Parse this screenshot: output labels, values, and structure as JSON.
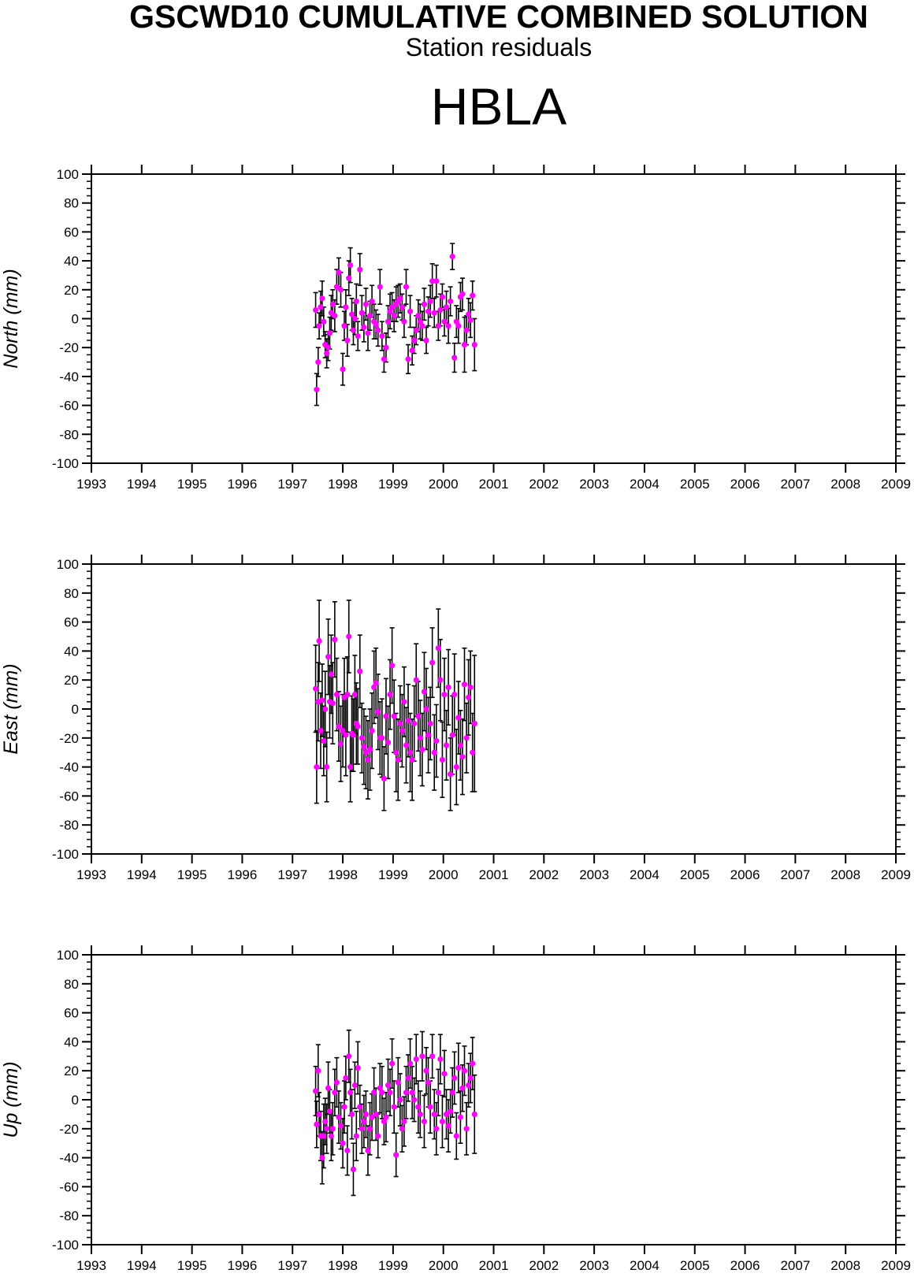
{
  "header": {
    "title": "GSCWD10 CUMULATIVE COMBINED SOLUTION",
    "subtitle": "Station residuals",
    "station": "HBLA"
  },
  "colors": {
    "point": "#ff00ff",
    "errorbar": "#000000",
    "axis": "#000000"
  },
  "chart_data": [
    {
      "type": "scatter",
      "ylabel": "North (mm)",
      "xlim": [
        1993,
        2009
      ],
      "ylim": [
        -100,
        100
      ],
      "xticks": [
        1993,
        1994,
        1995,
        1996,
        1997,
        1998,
        1999,
        2000,
        2001,
        2002,
        2003,
        2004,
        2005,
        2006,
        2007,
        2008,
        2009
      ],
      "yticks": [
        -100,
        -80,
        -60,
        -40,
        -20,
        0,
        20,
        40,
        60,
        80,
        100
      ],
      "ytick_labels": [
        "-100",
        "-80",
        "-60",
        "-40",
        "-20",
        "0",
        "20",
        "40",
        "60",
        "80",
        "100"
      ],
      "xtick_labels": [
        "1993",
        "1994",
        "1995",
        "1996",
        "1997",
        "1998",
        "1999",
        "2000",
        "2001",
        "2002",
        "2003",
        "2004",
        "2005",
        "2006",
        "2007",
        "2008",
        "2009"
      ],
      "series": [
        {
          "x": [
            1997.46,
            1997.48,
            1997.51,
            1997.53,
            1997.56,
            1997.59,
            1997.62,
            1997.65,
            1997.68,
            1997.71,
            1997.74,
            1997.77,
            1997.8,
            1997.84,
            1997.88,
            1997.92,
            1997.96,
            1998.0,
            1998.03,
            1998.06,
            1998.09,
            1998.12,
            1998.15,
            1998.18,
            1998.21,
            1998.24,
            1998.27,
            1998.3,
            1998.34,
            1998.38,
            1998.42,
            1998.46,
            1998.5,
            1998.54,
            1998.58,
            1998.62,
            1998.66,
            1998.7,
            1998.74,
            1998.78,
            1998.82,
            1998.86,
            1998.9,
            1998.94,
            1998.98,
            1999.02,
            1999.06,
            1999.1,
            1999.14,
            1999.18,
            1999.22,
            1999.26,
            1999.3,
            1999.34,
            1999.38,
            1999.42,
            1999.46,
            1999.5,
            1999.54,
            1999.58,
            1999.62,
            1999.66,
            1999.7,
            1999.74,
            1999.78,
            1999.82,
            1999.86,
            1999.9,
            1999.94,
            1999.98,
            2000.02,
            2000.06,
            2000.1,
            2000.14,
            2000.18,
            2000.22,
            2000.26,
            2000.3,
            2000.34,
            2000.38,
            2000.42,
            2000.46,
            2000.5,
            2000.54,
            2000.58,
            2000.62
          ],
          "y": [
            6,
            -49,
            -30,
            -5,
            8,
            14,
            -2,
            -18,
            -24,
            -20,
            -10,
            4,
            10,
            2,
            22,
            32,
            20,
            -35,
            -5,
            8,
            -15,
            28,
            37,
            3,
            -8,
            0,
            12,
            -12,
            34,
            4,
            -6,
            10,
            -10,
            2,
            12,
            -2,
            -4,
            -8,
            22,
            -12,
            -28,
            -20,
            -2,
            5,
            8,
            2,
            10,
            12,
            14,
            8,
            -2,
            22,
            -28,
            5,
            -22,
            -15,
            -8,
            2,
            -2,
            -5,
            10,
            -15,
            5,
            12,
            26,
            4,
            26,
            -5,
            6,
            15,
            -2,
            8,
            -5,
            12,
            43,
            -27,
            -2,
            -5,
            15,
            17,
            -18,
            -8,
            3,
            -1,
            16,
            -18
          ],
          "err": [
            12,
            11,
            10,
            9,
            11,
            12,
            10,
            9,
            10,
            9,
            11,
            12,
            10,
            11,
            12,
            10,
            12,
            11,
            10,
            12,
            11,
            12,
            12,
            11,
            10,
            11,
            12,
            10,
            11,
            12,
            10,
            11,
            12,
            10,
            11,
            12,
            10,
            11,
            12,
            10,
            9,
            10,
            11,
            12,
            10,
            11,
            12,
            11,
            10,
            9,
            11,
            12,
            10,
            11,
            10,
            9,
            10,
            11,
            12,
            10,
            11,
            9,
            10,
            11,
            12,
            10,
            11,
            10,
            11,
            9,
            10,
            11,
            12,
            10,
            9,
            10,
            11,
            12,
            10,
            11,
            19,
            10,
            11,
            12,
            10,
            18
          ]
        }
      ]
    },
    {
      "type": "scatter",
      "ylabel": "East (mm)",
      "xlim": [
        1993,
        2009
      ],
      "ylim": [
        -100,
        100
      ],
      "xticks": [
        1993,
        1994,
        1995,
        1996,
        1997,
        1998,
        1999,
        2000,
        2001,
        2002,
        2003,
        2004,
        2005,
        2006,
        2007,
        2008,
        2009
      ],
      "yticks": [
        -100,
        -80,
        -60,
        -40,
        -20,
        0,
        20,
        40,
        60,
        80,
        100
      ],
      "ytick_labels": [
        "-100",
        "-80",
        "-60",
        "-40",
        "-20",
        "0",
        "20",
        "40",
        "60",
        "80",
        "100"
      ],
      "xtick_labels": [
        "1993",
        "1994",
        "1995",
        "1996",
        "1997",
        "1998",
        "1999",
        "2000",
        "2001",
        "2002",
        "2003",
        "2004",
        "2005",
        "2006",
        "2007",
        "2008",
        "2009"
      ],
      "series": [
        {
          "x": [
            1997.46,
            1997.48,
            1997.51,
            1997.53,
            1997.56,
            1997.59,
            1997.62,
            1997.65,
            1997.68,
            1997.71,
            1997.74,
            1997.77,
            1997.8,
            1997.84,
            1997.88,
            1997.92,
            1997.96,
            1998.0,
            1998.03,
            1998.06,
            1998.09,
            1998.12,
            1998.15,
            1998.18,
            1998.21,
            1998.24,
            1998.27,
            1998.3,
            1998.34,
            1998.38,
            1998.42,
            1998.46,
            1998.5,
            1998.54,
            1998.58,
            1998.62,
            1998.66,
            1998.7,
            1998.74,
            1998.78,
            1998.82,
            1998.86,
            1998.9,
            1998.94,
            1998.98,
            1999.02,
            1999.06,
            1999.1,
            1999.14,
            1999.18,
            1999.22,
            1999.26,
            1999.3,
            1999.34,
            1999.38,
            1999.42,
            1999.46,
            1999.5,
            1999.54,
            1999.58,
            1999.62,
            1999.66,
            1999.7,
            1999.74,
            1999.78,
            1999.82,
            1999.86,
            1999.9,
            1999.94,
            1999.98,
            2000.02,
            2000.06,
            2000.1,
            2000.14,
            2000.18,
            2000.22,
            2000.26,
            2000.3,
            2000.34,
            2000.38,
            2000.42,
            2000.46,
            2000.5,
            2000.54,
            2000.58,
            2000.62
          ],
          "y": [
            14,
            -40,
            5,
            47,
            -15,
            6,
            -22,
            0,
            -40,
            36,
            5,
            24,
            4,
            48,
            10,
            -12,
            -24,
            -15,
            8,
            -18,
            10,
            50,
            -40,
            -17,
            -18,
            10,
            -10,
            -12,
            26,
            -20,
            -26,
            -30,
            -35,
            -28,
            -15,
            15,
            18,
            -2,
            -20,
            -20,
            -48,
            -5,
            -23,
            10,
            30,
            -5,
            -30,
            -35,
            -10,
            -15,
            5,
            -25,
            -8,
            -30,
            -35,
            -10,
            20,
            -5,
            -20,
            -28,
            12,
            0,
            -18,
            -10,
            32,
            -30,
            -22,
            42,
            20,
            -35,
            10,
            -25,
            15,
            -45,
            -18,
            10,
            -40,
            -6,
            -25,
            -33,
            17,
            -20,
            8,
            15,
            -30,
            -10
          ],
          "err": [
            30,
            25,
            27,
            28,
            26,
            25,
            24,
            26,
            24,
            26,
            25,
            27,
            28,
            26,
            25,
            24,
            26,
            25,
            27,
            28,
            26,
            25,
            24,
            26,
            25,
            27,
            28,
            26,
            25,
            24,
            26,
            25,
            27,
            28,
            26,
            25,
            24,
            26,
            25,
            27,
            22,
            26,
            25,
            24,
            26,
            25,
            27,
            28,
            26,
            25,
            24,
            26,
            25,
            27,
            28,
            26,
            25,
            24,
            26,
            25,
            27,
            28,
            26,
            25,
            24,
            26,
            25,
            27,
            28,
            26,
            25,
            24,
            26,
            25,
            27,
            28,
            26,
            25,
            24,
            26,
            25,
            24,
            26,
            25,
            27,
            47
          ]
        }
      ]
    },
    {
      "type": "scatter",
      "ylabel": "Up (mm)",
      "xlim": [
        1993,
        2009
      ],
      "ylim": [
        -100,
        100
      ],
      "xticks": [
        1993,
        1994,
        1995,
        1996,
        1997,
        1998,
        1999,
        2000,
        2001,
        2002,
        2003,
        2004,
        2005,
        2006,
        2007,
        2008,
        2009
      ],
      "yticks": [
        -100,
        -80,
        -60,
        -40,
        -20,
        0,
        20,
        40,
        60,
        80,
        100
      ],
      "ytick_labels": [
        "-100",
        "-80",
        "-60",
        "-40",
        "-20",
        "0",
        "20",
        "40",
        "60",
        "80",
        "100"
      ],
      "xtick_labels": [
        "1993",
        "1994",
        "1995",
        "1996",
        "1997",
        "1998",
        "1999",
        "2000",
        "2001",
        "2002",
        "2003",
        "2004",
        "2005",
        "2006",
        "2007",
        "2008",
        "2009"
      ],
      "series": [
        {
          "x": [
            1997.46,
            1997.48,
            1997.51,
            1997.53,
            1997.56,
            1997.59,
            1997.62,
            1997.65,
            1997.68,
            1997.71,
            1997.74,
            1997.77,
            1997.8,
            1997.84,
            1997.88,
            1997.92,
            1997.96,
            1998.0,
            1998.03,
            1998.06,
            1998.09,
            1998.12,
            1998.15,
            1998.18,
            1998.21,
            1998.24,
            1998.27,
            1998.3,
            1998.34,
            1998.38,
            1998.42,
            1998.46,
            1998.5,
            1998.54,
            1998.58,
            1998.62,
            1998.66,
            1998.7,
            1998.74,
            1998.78,
            1998.82,
            1998.86,
            1998.9,
            1998.94,
            1998.98,
            1999.02,
            1999.06,
            1999.1,
            1999.14,
            1999.18,
            1999.22,
            1999.26,
            1999.3,
            1999.34,
            1999.38,
            1999.42,
            1999.46,
            1999.5,
            1999.54,
            1999.58,
            1999.62,
            1999.66,
            1999.7,
            1999.74,
            1999.78,
            1999.82,
            1999.86,
            1999.9,
            1999.94,
            1999.98,
            2000.02,
            2000.06,
            2000.1,
            2000.14,
            2000.18,
            2000.22,
            2000.26,
            2000.3,
            2000.34,
            2000.38,
            2000.42,
            2000.46,
            2000.5,
            2000.54,
            2000.58,
            2000.62
          ],
          "y": [
            6,
            -17,
            20,
            -10,
            -25,
            -40,
            -25,
            -15,
            -20,
            8,
            -8,
            -25,
            -20,
            5,
            12,
            -12,
            -18,
            -30,
            -5,
            15,
            -35,
            30,
            5,
            -10,
            -48,
            10,
            -25,
            22,
            -5,
            -20,
            -15,
            -10,
            -35,
            -20,
            -12,
            5,
            -10,
            -25,
            8,
            5,
            -15,
            -12,
            10,
            5,
            25,
            -5,
            -38,
            12,
            0,
            -20,
            -15,
            5,
            15,
            25,
            5,
            0,
            28,
            -5,
            -10,
            30,
            -15,
            20,
            12,
            -5,
            30,
            -10,
            -20,
            5,
            28,
            -15,
            18,
            -10,
            -18,
            -8,
            5,
            15,
            -25,
            22,
            -12,
            8,
            20,
            -20,
            10,
            15,
            25,
            -10
          ],
          "err": [
            17,
            16,
            18,
            15,
            17,
            18,
            22,
            16,
            17,
            18,
            15,
            17,
            18,
            16,
            17,
            18,
            16,
            17,
            18,
            15,
            17,
            18,
            16,
            17,
            18,
            16,
            17,
            18,
            15,
            17,
            18,
            16,
            17,
            18,
            16,
            17,
            18,
            15,
            17,
            18,
            16,
            17,
            18,
            16,
            17,
            18,
            15,
            17,
            18,
            16,
            17,
            18,
            16,
            17,
            18,
            15,
            17,
            18,
            16,
            17,
            18,
            16,
            17,
            18,
            15,
            17,
            18,
            16,
            17,
            18,
            16,
            17,
            18,
            15,
            17,
            18,
            16,
            17,
            18,
            16,
            17,
            18,
            15,
            17,
            18,
            27
          ]
        }
      ]
    }
  ]
}
